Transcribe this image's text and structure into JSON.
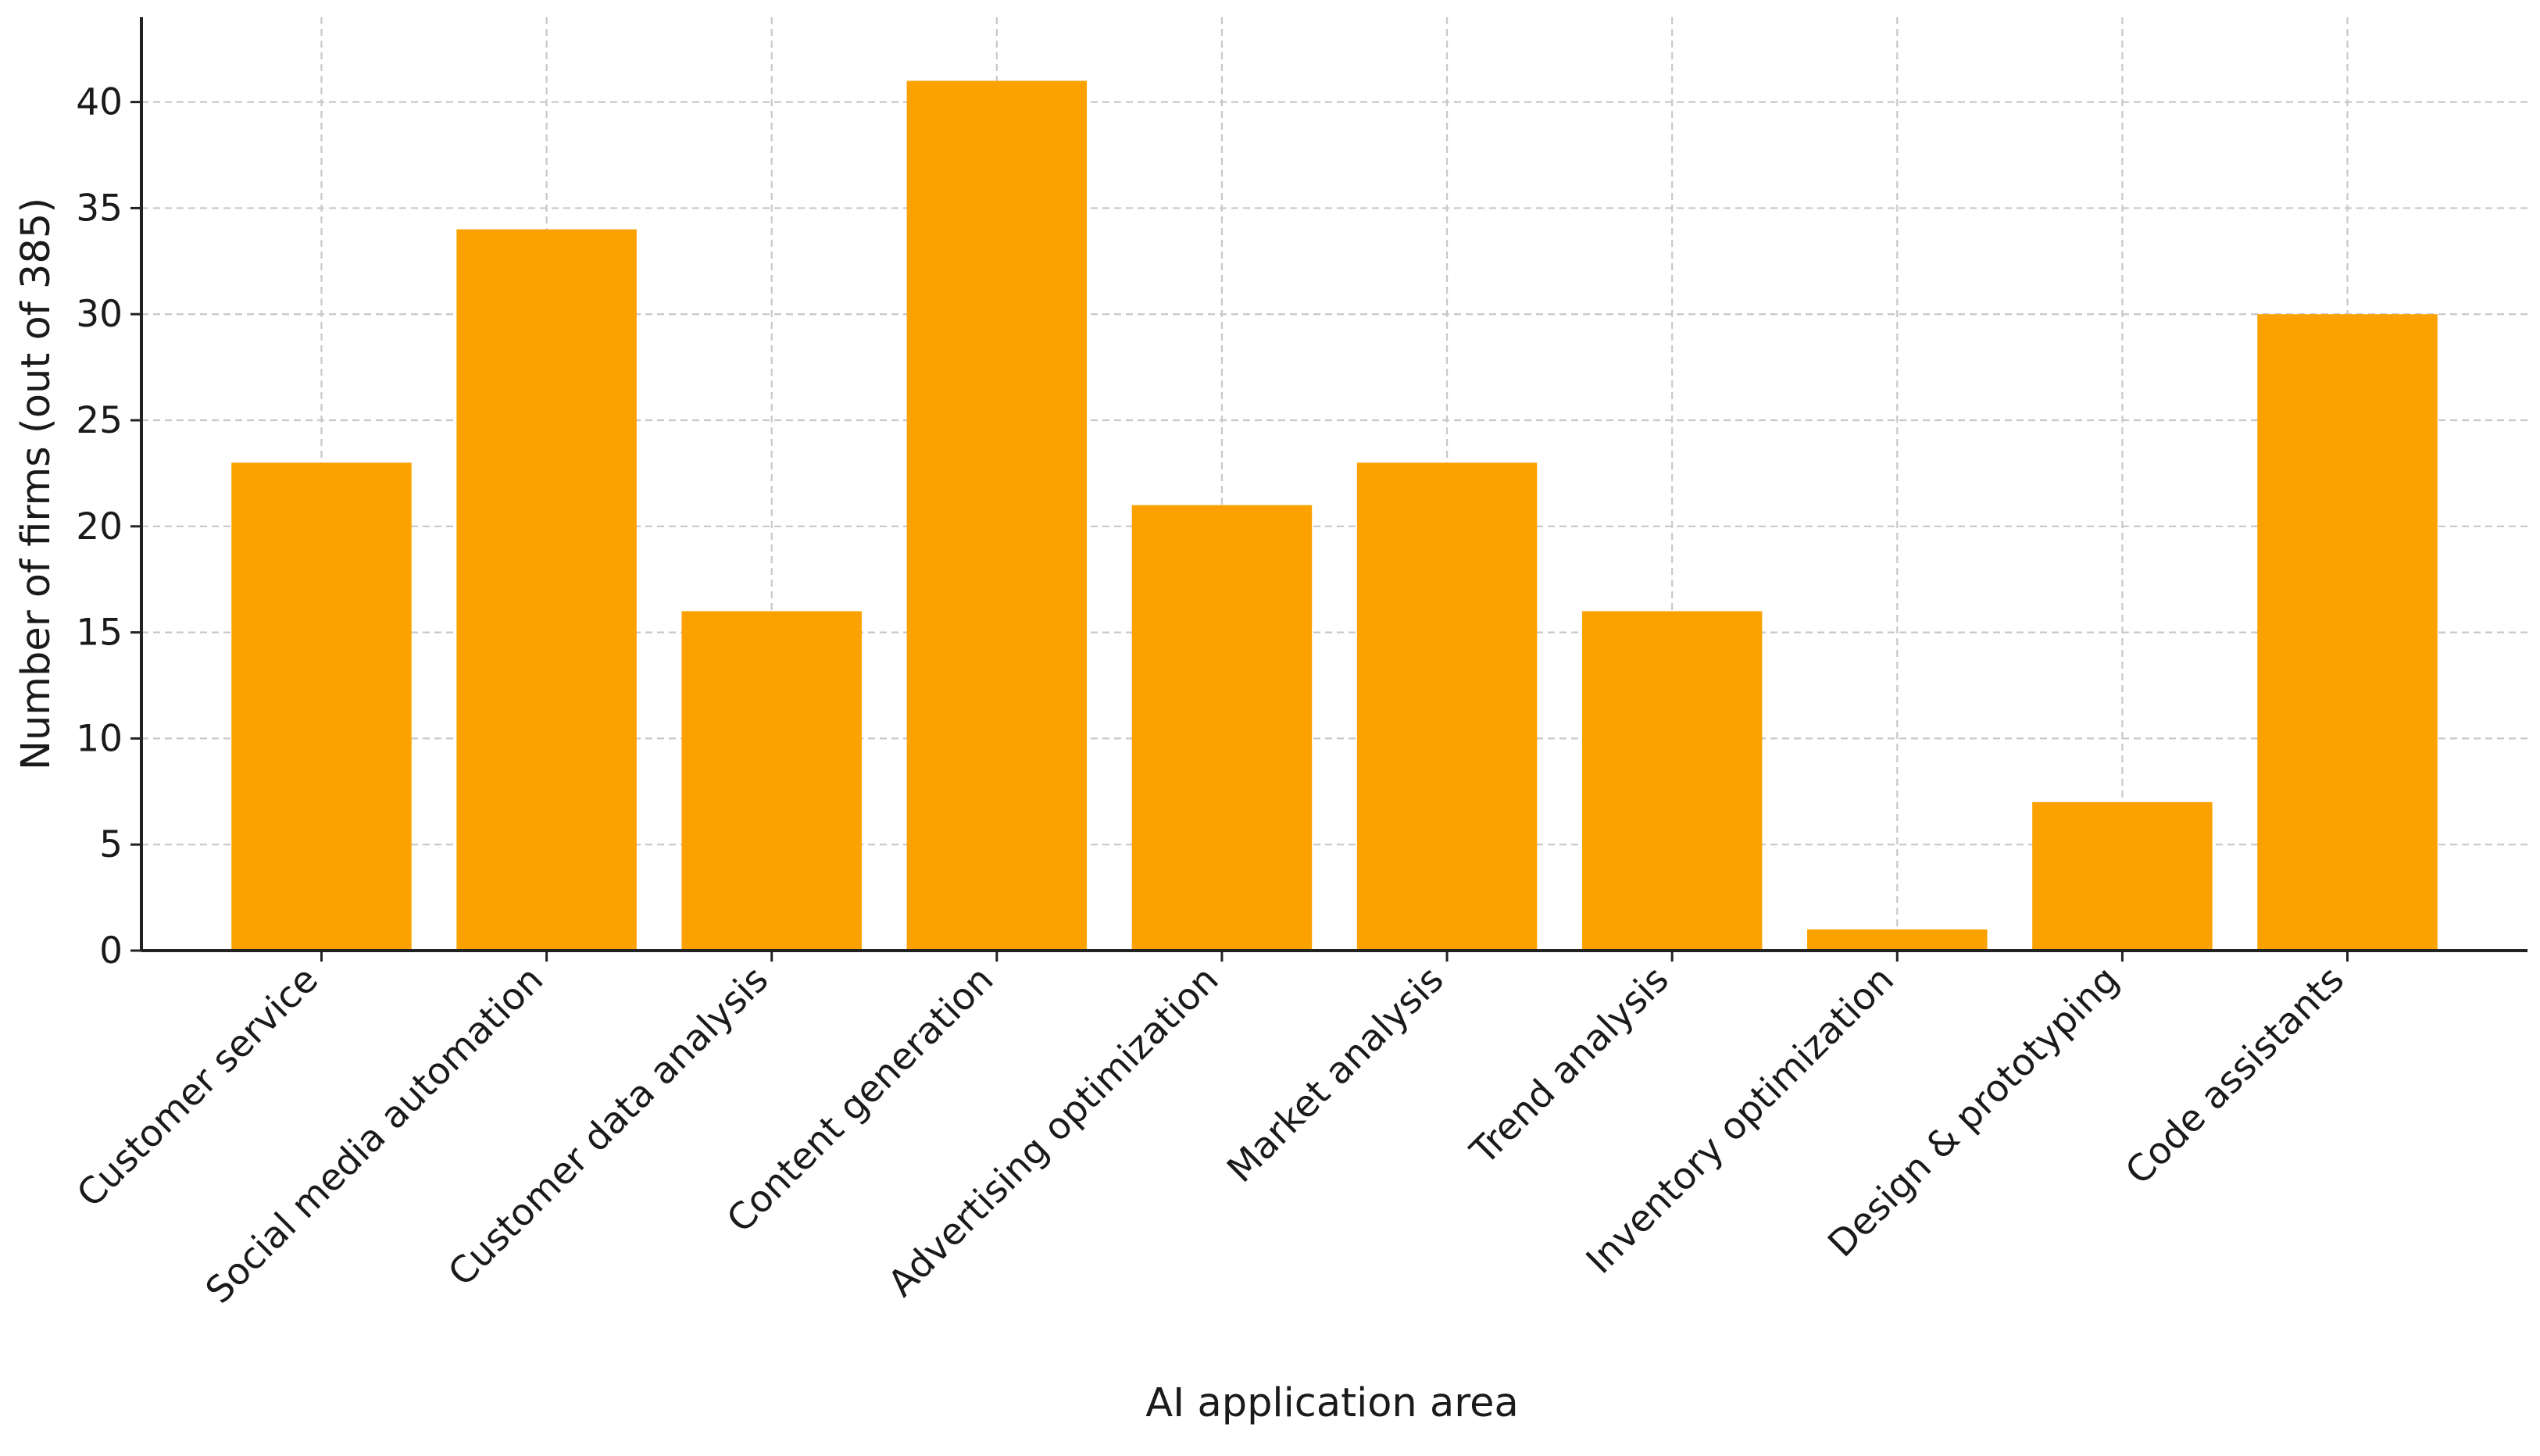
{
  "chart_data": {
    "type": "bar",
    "title": "",
    "xlabel": "AI application area",
    "ylabel": "Number of firms (out of 385)",
    "categories": [
      "Customer service",
      "Social media automation",
      "Customer data analysis",
      "Content generation",
      "Advertising optimization",
      "Market analysis",
      "Trend analysis",
      "Inventory optimization",
      "Design & prototyping",
      "Code assistants"
    ],
    "values": [
      23,
      34,
      16,
      41,
      21,
      23,
      16,
      1,
      7,
      30
    ],
    "ylim": [
      0,
      44
    ],
    "yticks": [
      0,
      5,
      10,
      15,
      20,
      25,
      30,
      35,
      40
    ],
    "grid": true,
    "bar_color": "#FBA200",
    "legend": null
  }
}
